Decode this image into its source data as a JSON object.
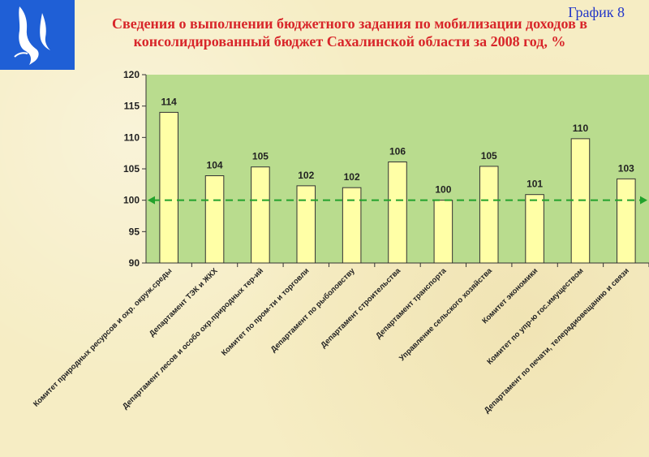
{
  "chart_number": "График 8",
  "logo": {
    "icon": "sakhalin-island-emblem-icon",
    "background": "#1f5fd6"
  },
  "colors": {
    "plot_background": "#b9dc8e",
    "bar_fill": "#ffffa6",
    "bar_stroke": "#333333",
    "reference_line": "#22a12c",
    "title": "#d8262a",
    "chart_number": "#2236c8"
  },
  "chart_data": {
    "type": "bar",
    "title": "Сведения о выполнении бюджетного задания по мобилизации доходов в консолидированный бюджет Сахалинской области за 2008 год, %",
    "xlabel": "",
    "ylabel": "",
    "ylim": [
      90,
      120
    ],
    "yticks": [
      90,
      95,
      100,
      105,
      110,
      115,
      120
    ],
    "grid": false,
    "legend": "none",
    "reference_line": 100,
    "categories": [
      "Комитет природных ресурсов и охр. окруж.среды",
      "Департамент ТЭК и ЖКХ",
      "Департамент лесов и особо охр.природных тер-ий",
      "Комитет по пром-ти и торговли",
      "Департамент по рыболовству",
      "Департамент строительства",
      "Департамент транспорта",
      "Управление сельского хозяйства",
      "Комитет экономики",
      "Комитет по упр-ю гос.имуществом",
      "Департамент по печати, телерадиовещанию и связи"
    ],
    "values": [
      114,
      103.9,
      105.3,
      102.3,
      102.0,
      106.1,
      100,
      105.4,
      100.9,
      109.8,
      103.4
    ],
    "data_labels": [
      "114",
      "104",
      "105",
      "102",
      "102",
      "106",
      "100",
      "105",
      "101",
      "110",
      "103"
    ]
  }
}
